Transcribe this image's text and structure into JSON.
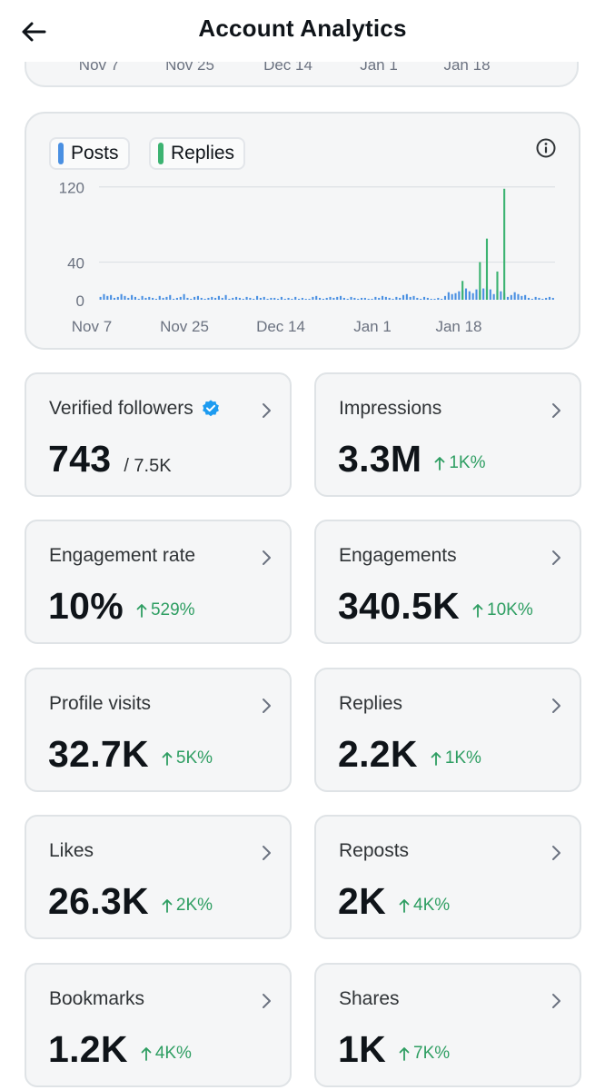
{
  "header": {
    "title": "Account Analytics"
  },
  "top_card": {
    "ticks": [
      "Nov 7",
      "Nov 25",
      "Dec 14",
      "Jan 1",
      "Jan 18"
    ]
  },
  "chart": {
    "legend": [
      {
        "label": "Posts",
        "color": "#4a90e2"
      },
      {
        "label": "Replies",
        "color": "#3cb371"
      }
    ]
  },
  "chart_data": {
    "type": "bar",
    "title": "",
    "xlabel": "",
    "ylabel": "",
    "ylim": [
      0,
      140
    ],
    "yticks": [
      0,
      40,
      120
    ],
    "xtick_labels": [
      "Nov 7",
      "Nov 25",
      "Dec 14",
      "Jan 1",
      "Jan 18"
    ],
    "grid": true,
    "legend_placement": "top-left",
    "series": [
      {
        "name": "Posts",
        "color": "#4a90e2",
        "values": [
          3,
          6,
          4,
          5,
          2,
          3,
          6,
          4,
          2,
          5,
          3,
          1,
          4,
          2,
          3,
          2,
          1,
          4,
          2,
          3,
          5,
          1,
          2,
          3,
          6,
          2,
          1,
          3,
          4,
          2,
          1,
          2,
          3,
          2,
          4,
          2,
          5,
          1,
          2,
          3,
          2,
          1,
          3,
          2,
          1,
          4,
          2,
          3,
          1,
          2,
          2,
          1,
          3,
          1,
          2,
          1,
          3,
          1,
          2,
          1,
          1,
          3,
          4,
          2,
          1,
          2,
          3,
          2,
          3,
          4,
          2,
          1,
          3,
          2,
          1,
          2,
          2,
          1,
          1,
          3,
          2,
          4,
          3,
          2,
          1,
          3,
          2,
          5,
          6,
          3,
          4,
          2,
          1,
          3,
          2,
          1,
          1,
          2,
          1,
          4,
          8,
          6,
          7,
          9,
          10,
          12,
          9,
          7,
          11,
          10,
          12,
          14,
          11,
          6,
          10,
          9,
          7,
          3,
          5,
          8,
          6,
          4,
          5,
          2,
          1,
          3,
          2,
          1,
          2,
          3,
          2
        ]
      },
      {
        "name": "Replies",
        "color": "#3cb371",
        "values": [
          0,
          0,
          0,
          0,
          0,
          0,
          0,
          0,
          0,
          0,
          0,
          0,
          0,
          0,
          0,
          0,
          0,
          0,
          0,
          0,
          0,
          0,
          0,
          0,
          0,
          0,
          0,
          0,
          0,
          0,
          0,
          0,
          0,
          0,
          0,
          0,
          0,
          0,
          0,
          0,
          0,
          0,
          0,
          0,
          0,
          0,
          0,
          0,
          0,
          0,
          0,
          0,
          0,
          0,
          0,
          0,
          0,
          0,
          0,
          0,
          0,
          0,
          0,
          0,
          0,
          0,
          0,
          0,
          0,
          0,
          0,
          0,
          0,
          0,
          0,
          0,
          0,
          0,
          0,
          0,
          0,
          0,
          0,
          0,
          0,
          0,
          0,
          0,
          0,
          0,
          0,
          0,
          0,
          0,
          0,
          0,
          0,
          0,
          0,
          0,
          0,
          0,
          0,
          0,
          20,
          0,
          0,
          0,
          0,
          40,
          0,
          65,
          0,
          0,
          30,
          0,
          118,
          0,
          0,
          0,
          0,
          0,
          0,
          0,
          0,
          0,
          0,
          0,
          0,
          0,
          0
        ]
      }
    ]
  },
  "stats": [
    {
      "label": "Verified followers",
      "value": "743",
      "total": "/ 7.5K",
      "change": "",
      "verified": true
    },
    {
      "label": "Impressions",
      "value": "3.3M",
      "change": "1K%"
    },
    {
      "label": "Engagement rate",
      "value": "10%",
      "change": "529%"
    },
    {
      "label": "Engagements",
      "value": "340.5K",
      "change": "10K%"
    },
    {
      "label": "Profile visits",
      "value": "32.7K",
      "change": "5K%"
    },
    {
      "label": "Replies",
      "value": "2.2K",
      "change": "1K%"
    },
    {
      "label": "Likes",
      "value": "26.3K",
      "change": "2K%"
    },
    {
      "label": "Reposts",
      "value": "2K",
      "change": "4K%"
    },
    {
      "label": "Bookmarks",
      "value": "1.2K",
      "change": "4K%"
    },
    {
      "label": "Shares",
      "value": "1K",
      "change": "7K%"
    }
  ],
  "colors": {
    "accent_blue": "#4a90e2",
    "accent_green": "#3cb371",
    "change_green": "#2e9e62",
    "verified_blue": "#1d9bf0"
  }
}
